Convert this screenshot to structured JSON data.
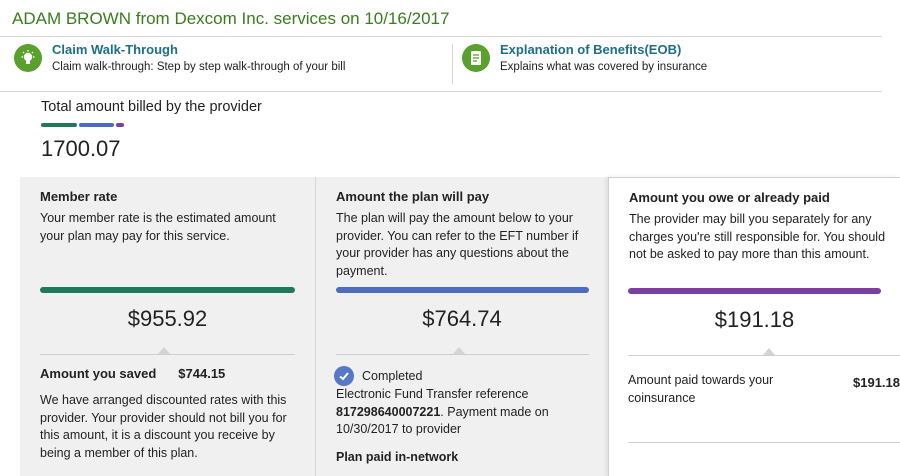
{
  "header": {
    "title": "ADAM BROWN from Dexcom Inc. services on 10/16/2017"
  },
  "links": {
    "walkthrough": {
      "icon": "lightbulb-icon",
      "title": "Claim Walk-Through",
      "desc": "Claim walk-through: Step by step walk-through of your bill"
    },
    "eob": {
      "icon": "document-icon",
      "title": "Explanation of Benefits(EOB)",
      "desc": "Explains what was covered by insurance"
    }
  },
  "billed": {
    "label": "Total amount billed by the provider",
    "amount": "1700.07"
  },
  "colors": {
    "member": "#1e7a5a",
    "plan": "#4e6bbf",
    "owe": "#7a3fa0",
    "icon_green": "#5aa02c",
    "title_green": "#3a7d1e",
    "link_blue": "#1d6e86"
  },
  "member_rate": {
    "heading": "Member rate",
    "desc": "Your member rate is the estimated amount your plan may pay for this service.",
    "amount": "$955.92",
    "saved_label": "Amount you saved",
    "saved_value": "$744.15",
    "saved_desc": "We have arranged discounted rates with this provider. Your provider should not bill you for this amount, it is a discount you receive by being a member of this plan."
  },
  "plan_pay": {
    "heading": "Amount the plan will pay",
    "desc": "The plan will pay the amount below to your provider. You can refer to the EFT number if your provider has any questions about the payment.",
    "amount": "$764.74",
    "status": "Completed",
    "eft_prefix": "Electronic Fund Transfer reference",
    "eft_ref": "817298640007221",
    "eft_suffix": ". Payment made on 10/30/2017 to provider",
    "network": "Plan paid in-network"
  },
  "owe": {
    "heading": "Amount you owe or already paid",
    "desc": "The provider may bill you separately for any charges you're still responsible for. You should not be asked to pay more than this amount.",
    "amount": "$191.18",
    "coins_label": "Amount paid towards your coinsurance",
    "coins_value": "$191.18"
  }
}
